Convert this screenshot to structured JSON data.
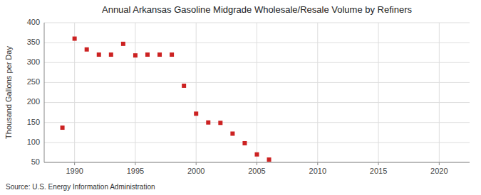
{
  "chart_data": {
    "type": "scatter",
    "title": "Annual Arkansas Gasoline Midgrade Wholesale/Resale Volume by Refiners",
    "ylabel": "Thousand Gallons per Day",
    "source": "Source: U.S. Energy Information Administration",
    "x": [
      1989,
      1990,
      1991,
      1992,
      1993,
      1994,
      1995,
      1996,
      1997,
      1998,
      1999,
      2000,
      2001,
      2002,
      2003,
      2004,
      2005,
      2006
    ],
    "values": [
      137,
      360,
      333,
      320,
      320,
      347,
      318,
      320,
      320,
      320,
      242,
      172,
      150,
      149,
      122,
      98,
      70,
      57
    ],
    "color": "#cc2222",
    "marker": "square",
    "xlim": [
      1987.5,
      2022.5
    ],
    "ylim": [
      50,
      400
    ],
    "xticks": [
      1990,
      1995,
      2000,
      2005,
      2010,
      2015,
      2020
    ],
    "yticks": [
      50,
      100,
      150,
      200,
      250,
      300,
      350,
      400
    ],
    "grid": true
  }
}
